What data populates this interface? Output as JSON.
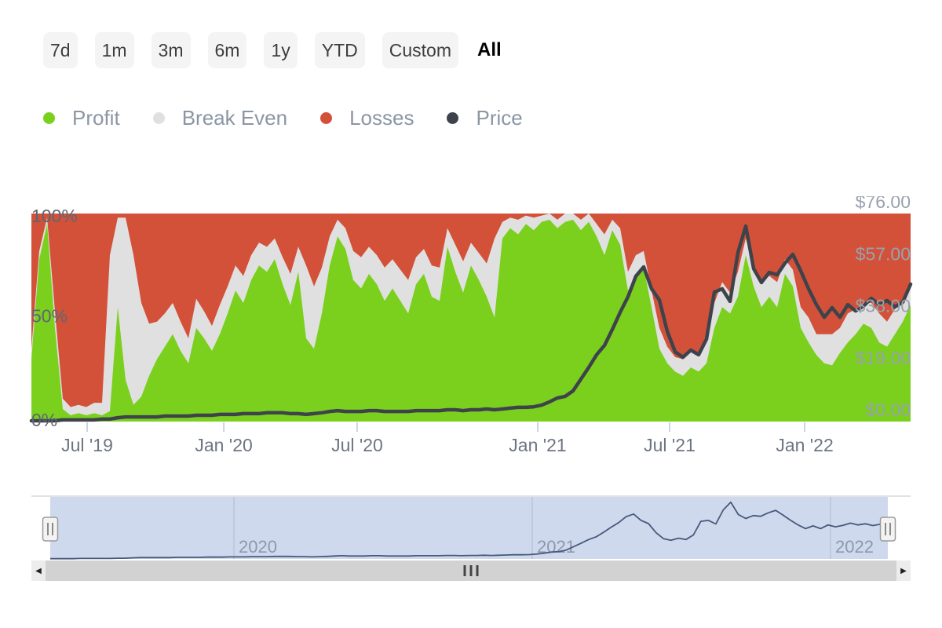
{
  "time_range_buttons": {
    "options": [
      "7d",
      "1m",
      "3m",
      "6m",
      "1y",
      "YTD",
      "Custom",
      "All"
    ],
    "selected": "All"
  },
  "legend": [
    {
      "label": "Profit",
      "color": "#7bd01e"
    },
    {
      "label": "Break Even",
      "color": "#e0e0e0"
    },
    {
      "label": "Losses",
      "color": "#d45139"
    },
    {
      "label": "Price",
      "color": "#3e434b"
    }
  ],
  "chart_data": {
    "type": "area",
    "stacking": "percent",
    "title": "",
    "x_ticks": [
      {
        "label": "Jul '19",
        "pos": 0.0634
      },
      {
        "label": "Jan '20",
        "pos": 0.2188
      },
      {
        "label": "Jul '20",
        "pos": 0.3705
      },
      {
        "label": "Jan '21",
        "pos": 0.5759
      },
      {
        "label": "Jul '21",
        "pos": 0.7259
      },
      {
        "label": "Jan '22",
        "pos": 0.8795
      }
    ],
    "y_left": {
      "ticks": [
        "0%",
        "50%",
        "100%"
      ],
      "values": [
        0,
        50,
        100
      ],
      "min": 0,
      "max": 100
    },
    "y_right": {
      "ticks": [
        "$0.00",
        "$19.00",
        "$38.00",
        "$57.00",
        "$76.00"
      ],
      "values": [
        0,
        19,
        38,
        57,
        76
      ],
      "min": 0,
      "max": 76
    },
    "series": [
      {
        "name": "Profit",
        "type": "area",
        "color": "#7bd01e",
        "values": [
          30,
          78,
          95,
          45,
          6,
          3,
          4,
          3,
          4,
          3,
          5,
          55,
          20,
          8,
          12,
          22,
          30,
          36,
          42,
          34,
          28,
          45,
          40,
          34,
          42,
          52,
          63,
          57,
          68,
          75,
          72,
          78,
          66,
          56,
          72,
          40,
          35,
          52,
          75,
          89,
          83,
          68,
          64,
          71,
          66,
          58,
          64,
          58,
          52,
          66,
          71,
          60,
          58,
          84,
          72,
          62,
          75,
          68,
          60,
          50,
          88,
          93,
          90,
          95,
          92,
          96,
          97,
          93,
          96,
          97,
          92,
          96,
          89,
          80,
          92,
          85,
          63,
          70,
          74,
          55,
          35,
          28,
          24,
          22,
          26,
          24,
          28,
          45,
          55,
          52,
          60,
          80,
          65,
          55,
          60,
          55,
          71,
          65,
          45,
          38,
          32,
          28,
          27,
          33,
          38,
          42,
          47,
          45,
          38,
          36,
          42,
          48,
          56
        ]
      },
      {
        "name": "Break Even",
        "type": "area",
        "color": "#e0e0e0",
        "values": [
          5,
          4,
          3,
          8,
          5,
          4,
          4,
          4,
          5,
          6,
          75,
          43,
          78,
          72,
          45,
          25,
          18,
          16,
          15,
          14,
          12,
          14,
          13,
          12,
          14,
          13,
          12,
          13,
          12,
          11,
          12,
          10,
          13,
          15,
          12,
          35,
          30,
          22,
          14,
          8,
          10,
          14,
          15,
          13,
          14,
          16,
          14,
          15,
          16,
          13,
          12,
          15,
          16,
          9,
          13,
          15,
          11,
          13,
          16,
          38,
          8,
          5,
          7,
          4,
          6,
          3,
          3,
          4,
          4,
          3,
          5,
          4,
          6,
          10,
          5,
          8,
          9,
          10,
          8,
          8,
          10,
          8,
          7,
          8,
          9,
          8,
          10,
          12,
          12,
          10,
          12,
          8,
          10,
          12,
          10,
          12,
          7,
          8,
          10,
          12,
          10,
          14,
          15,
          12,
          14,
          12,
          10,
          12,
          14,
          12,
          12,
          10,
          8
        ]
      },
      {
        "name": "Losses",
        "type": "area",
        "color": "#d45139",
        "values": [
          65,
          18,
          2,
          47,
          89,
          93,
          92,
          93,
          91,
          91,
          20,
          2,
          2,
          20,
          43,
          53,
          52,
          48,
          43,
          52,
          60,
          41,
          47,
          54,
          44,
          35,
          25,
          30,
          20,
          14,
          16,
          12,
          21,
          29,
          16,
          25,
          35,
          26,
          11,
          3,
          7,
          18,
          21,
          16,
          20,
          26,
          22,
          27,
          32,
          21,
          17,
          25,
          26,
          7,
          15,
          23,
          14,
          19,
          24,
          12,
          4,
          2,
          3,
          1,
          2,
          1,
          0,
          3,
          0,
          0,
          3,
          0,
          5,
          10,
          3,
          7,
          28,
          20,
          18,
          37,
          55,
          64,
          69,
          70,
          65,
          68,
          62,
          43,
          33,
          38,
          28,
          12,
          25,
          33,
          30,
          33,
          22,
          27,
          45,
          50,
          58,
          58,
          58,
          55,
          48,
          46,
          43,
          43,
          48,
          52,
          46,
          42,
          36
        ]
      },
      {
        "name": "Price",
        "type": "line",
        "color": "#3e434b",
        "values": [
          0.3,
          0.3,
          0.3,
          0.3,
          0.6,
          0.6,
          0.6,
          0.6,
          0.6,
          0.9,
          0.9,
          1.4,
          1.7,
          1.7,
          1.7,
          1.7,
          1.7,
          2.0,
          2.0,
          2.0,
          2.0,
          2.3,
          2.3,
          2.3,
          2.6,
          2.6,
          2.6,
          2.9,
          2.9,
          2.9,
          3.2,
          3.2,
          3.2,
          2.9,
          2.9,
          2.6,
          2.9,
          3.2,
          3.7,
          4.0,
          3.7,
          3.7,
          3.7,
          4.0,
          4.0,
          3.7,
          3.7,
          3.7,
          3.7,
          4.0,
          4.0,
          4.0,
          4.0,
          4.3,
          4.3,
          4.0,
          4.3,
          4.3,
          4.6,
          4.3,
          4.6,
          4.9,
          5.2,
          5.2,
          5.4,
          6.0,
          7.2,
          8.6,
          9.2,
          11.2,
          15.5,
          19.8,
          24.4,
          27.8,
          33.6,
          39.9,
          45.6,
          53.1,
          56.5,
          48.5,
          44.4,
          33.0,
          25.5,
          23.5,
          26.1,
          24.4,
          30.1,
          47.3,
          48.5,
          43.9,
          61.7,
          71.4,
          55.9,
          50.8,
          54.5,
          53.6,
          57.9,
          61.1,
          55.1,
          48.5,
          42.7,
          38.1,
          41.6,
          38.1,
          42.7,
          40.4,
          42.2,
          45.0,
          42.7,
          44.2,
          41.9,
          43.6,
          50.2
        ]
      }
    ]
  },
  "navigator": {
    "year_labels": [
      "2020",
      "2021",
      "2022"
    ],
    "fill_color": "#cfd9ed",
    "line_color": "#47597c"
  },
  "scrollbar": {
    "left_arrow": "◀",
    "right_arrow": "▶"
  }
}
